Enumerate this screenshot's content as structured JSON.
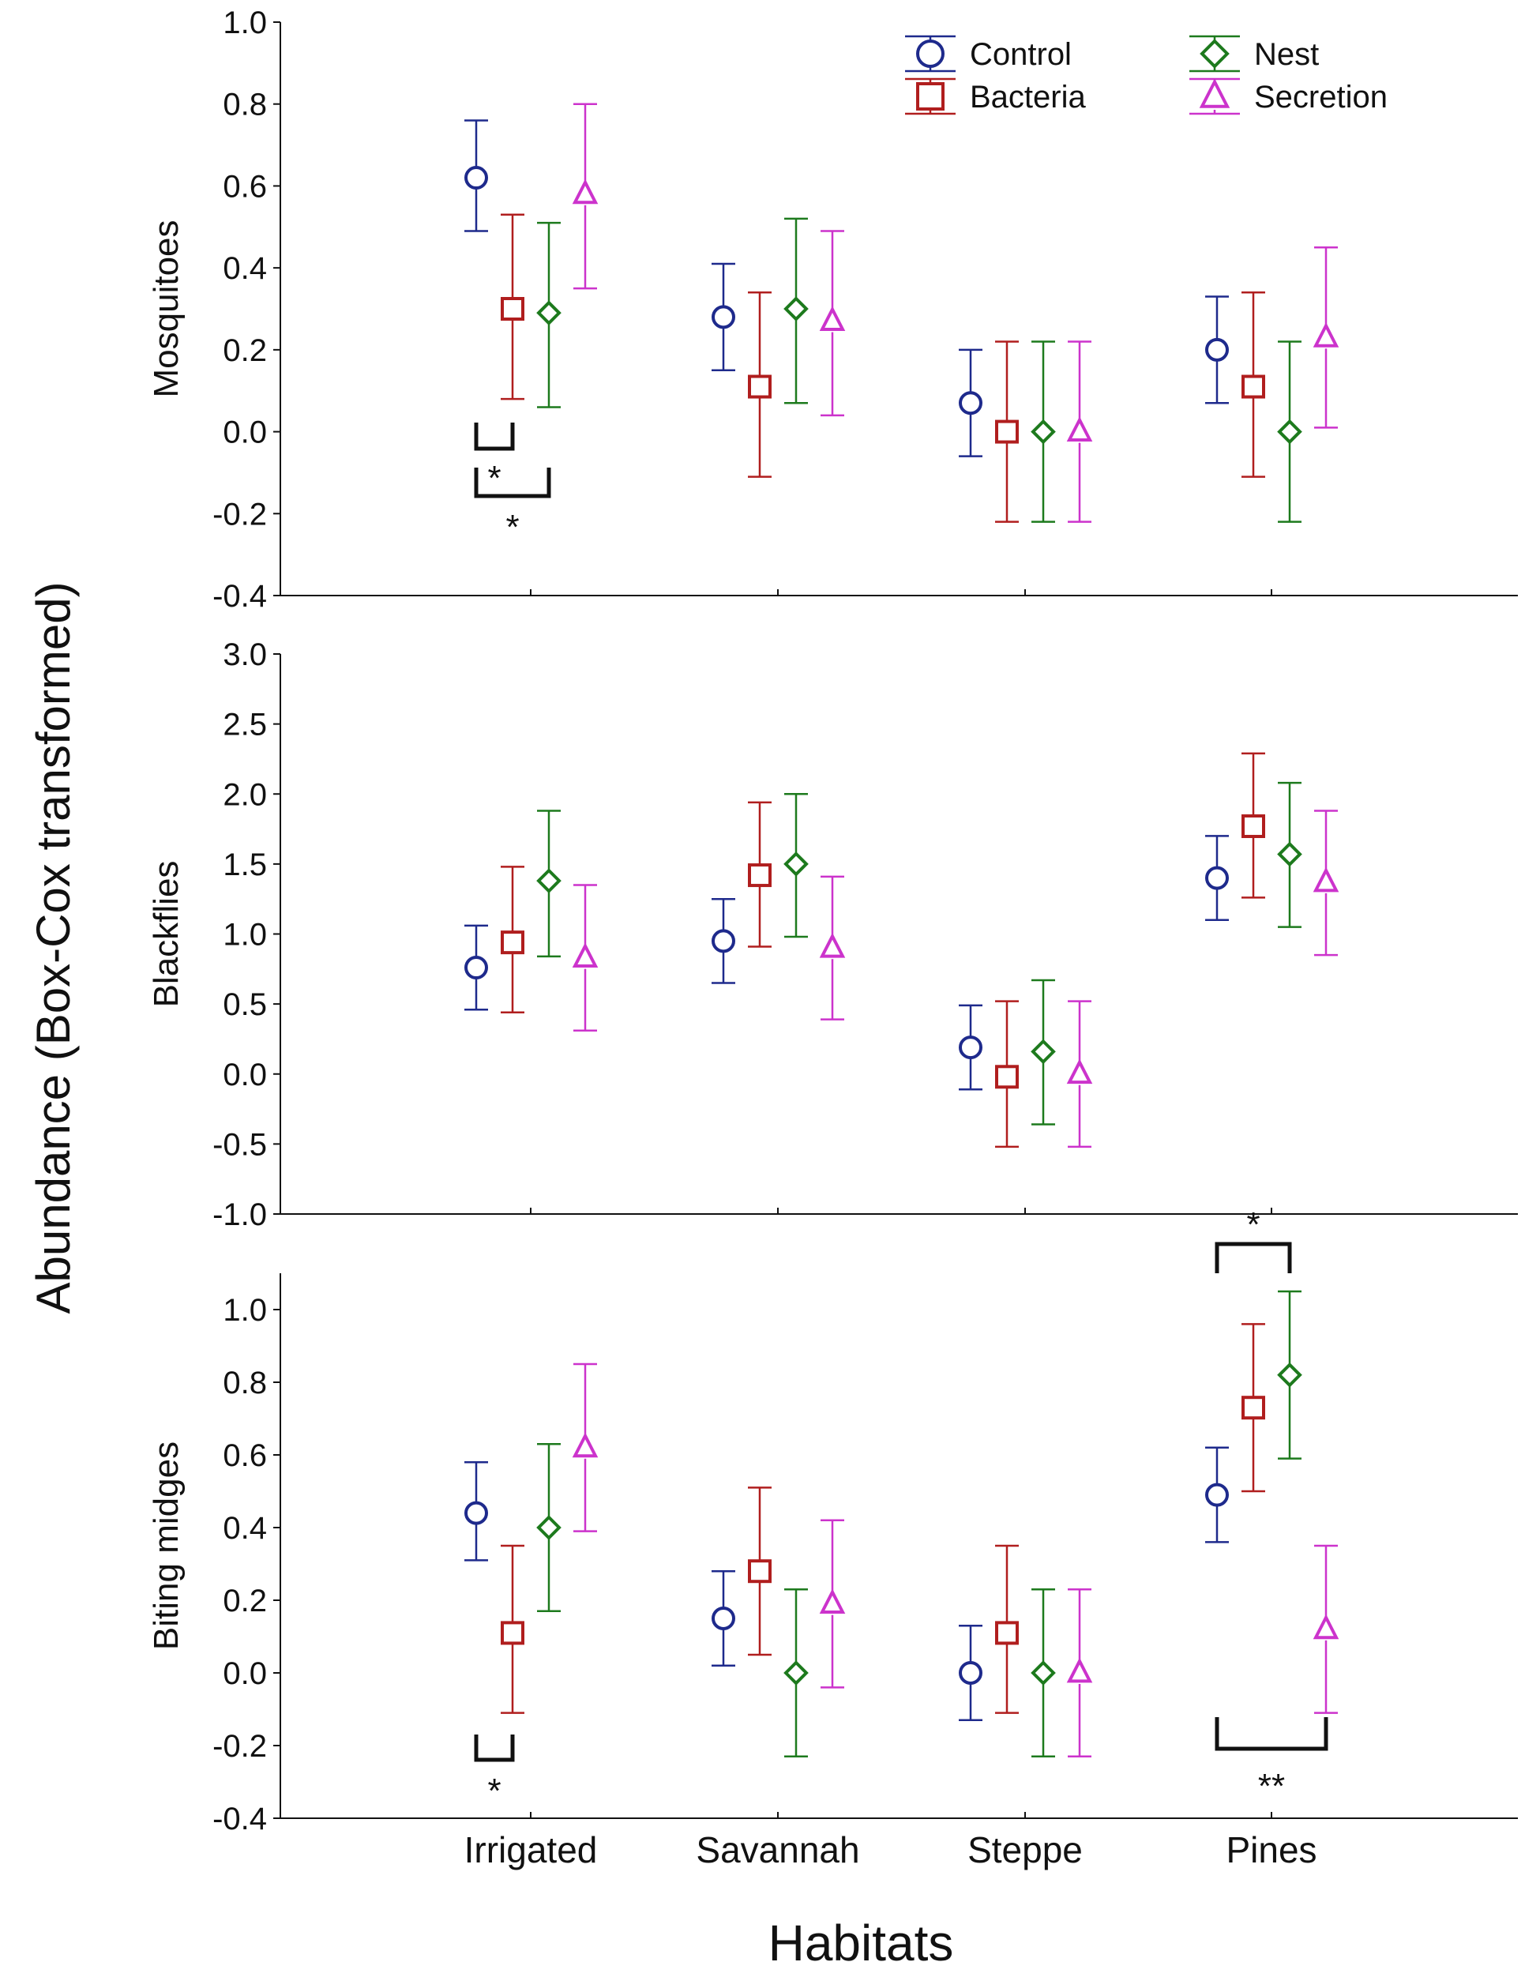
{
  "chart_data": {
    "type": "scatter",
    "subtype": "error-bar plot",
    "ylabel": "Abundance (Box-Cox transformed)",
    "xlabel": "Habitats",
    "categories": [
      "Irrigated",
      "Savannah",
      "Steppe",
      "Pines"
    ],
    "legend": {
      "placement": "top-right",
      "entries": [
        {
          "name": "Control",
          "marker": "circle",
          "color": "#1e2a8c"
        },
        {
          "name": "Bacteria",
          "marker": "square",
          "color": "#b01e1e"
        },
        {
          "name": "Nest",
          "marker": "diamond",
          "color": "#1d7a1d"
        },
        {
          "name": "Secretion",
          "marker": "triangle",
          "color": "#cc33cc"
        }
      ]
    },
    "panels": [
      {
        "ylabel": "Mosquitoes",
        "ylim": [
          -0.4,
          1.0
        ],
        "yticks": [
          -0.4,
          -0.2,
          0.0,
          0.2,
          0.4,
          0.6,
          0.8,
          1.0
        ],
        "ytick_labels": [
          "-0.4",
          "-0.2",
          "0.0",
          "0.2",
          "0.4",
          "0.6",
          "0.8",
          "1.0"
        ],
        "series": [
          {
            "name": "Control",
            "mean": [
              0.62,
              0.28,
              0.07,
              0.2
            ],
            "lower": [
              0.49,
              0.15,
              -0.06,
              0.07
            ],
            "upper": [
              0.76,
              0.41,
              0.2,
              0.33
            ]
          },
          {
            "name": "Bacteria",
            "mean": [
              0.3,
              0.11,
              0.0,
              0.11
            ],
            "lower": [
              0.08,
              -0.11,
              -0.22,
              -0.11
            ],
            "upper": [
              0.53,
              0.34,
              0.22,
              0.34
            ]
          },
          {
            "name": "Nest",
            "mean": [
              0.29,
              0.3,
              0.0,
              0.0
            ],
            "lower": [
              0.06,
              0.07,
              -0.22,
              -0.22
            ],
            "upper": [
              0.51,
              0.52,
              0.22,
              0.22
            ]
          },
          {
            "name": "Secretion",
            "mean": [
              0.58,
              0.27,
              0.0,
              0.23
            ],
            "lower": [
              0.35,
              0.04,
              -0.22,
              0.01
            ],
            "upper": [
              0.8,
              0.49,
              0.22,
              0.45
            ]
          }
        ],
        "significance": [
          {
            "category": "Irrigated",
            "between": [
              "Control",
              "Bacteria"
            ],
            "label": "*"
          },
          {
            "category": "Irrigated",
            "between": [
              "Control",
              "Nest"
            ],
            "label": "*"
          }
        ]
      },
      {
        "ylabel": "Blackflies",
        "ylim": [
          -1.0,
          3.0
        ],
        "yticks": [
          -1.0,
          -0.5,
          0.0,
          0.5,
          1.0,
          1.5,
          2.0,
          2.5,
          3.0
        ],
        "ytick_labels": [
          "-1.0",
          "-0.5",
          "0.0",
          "0.5",
          "1.0",
          "1.5",
          "2.0",
          "2.5",
          "3.0"
        ],
        "series": [
          {
            "name": "Control",
            "mean": [
              0.76,
              0.95,
              0.19,
              1.4
            ],
            "lower": [
              0.46,
              0.65,
              -0.11,
              1.1
            ],
            "upper": [
              1.06,
              1.25,
              0.49,
              1.7
            ]
          },
          {
            "name": "Bacteria",
            "mean": [
              0.94,
              1.42,
              -0.02,
              1.77
            ],
            "lower": [
              0.44,
              0.91,
              -0.52,
              1.26
            ],
            "upper": [
              1.48,
              1.94,
              0.52,
              2.29
            ]
          },
          {
            "name": "Nest",
            "mean": [
              1.38,
              1.5,
              0.16,
              1.57
            ],
            "lower": [
              0.84,
              0.98,
              -0.36,
              1.05
            ],
            "upper": [
              1.88,
              2.0,
              0.67,
              2.08
            ]
          },
          {
            "name": "Secretion",
            "mean": [
              0.83,
              0.9,
              0.0,
              1.37
            ],
            "lower": [
              0.31,
              0.39,
              -0.52,
              0.85
            ],
            "upper": [
              1.35,
              1.41,
              0.52,
              1.88
            ]
          }
        ],
        "significance": []
      },
      {
        "ylabel": "Biting midges",
        "ylim": [
          -0.4,
          1.1
        ],
        "yticks": [
          -0.4,
          -0.2,
          0.0,
          0.2,
          0.4,
          0.6,
          0.8,
          1.0
        ],
        "ytick_labels": [
          "-0.4",
          "-0.2",
          "0.0",
          "0.2",
          "0.4",
          "0.6",
          "0.8",
          "1.0"
        ],
        "series": [
          {
            "name": "Control",
            "mean": [
              0.44,
              0.15,
              0.0,
              0.49
            ],
            "lower": [
              0.31,
              0.02,
              -0.13,
              0.36
            ],
            "upper": [
              0.58,
              0.28,
              0.13,
              0.62
            ]
          },
          {
            "name": "Bacteria",
            "mean": [
              0.11,
              0.28,
              0.11,
              0.73
            ],
            "lower": [
              -0.11,
              0.05,
              -0.11,
              0.5
            ],
            "upper": [
              0.35,
              0.51,
              0.35,
              0.96
            ]
          },
          {
            "name": "Nest",
            "mean": [
              0.4,
              0.0,
              0.0,
              0.82
            ],
            "lower": [
              0.17,
              -0.23,
              -0.23,
              0.59
            ],
            "upper": [
              0.63,
              0.23,
              0.23,
              1.05
            ]
          },
          {
            "name": "Secretion",
            "mean": [
              0.62,
              0.19,
              0.0,
              0.12
            ],
            "lower": [
              0.39,
              -0.04,
              -0.23,
              -0.11
            ],
            "upper": [
              0.85,
              0.42,
              0.23,
              0.35
            ]
          }
        ],
        "significance": [
          {
            "category": "Irrigated",
            "between": [
              "Control",
              "Bacteria"
            ],
            "label": "*"
          },
          {
            "category": "Pines",
            "between": [
              "Control",
              "Nest"
            ],
            "label": "*"
          },
          {
            "category": "Pines",
            "between": [
              "Control",
              "Secretion"
            ],
            "label": "**"
          }
        ]
      }
    ]
  }
}
